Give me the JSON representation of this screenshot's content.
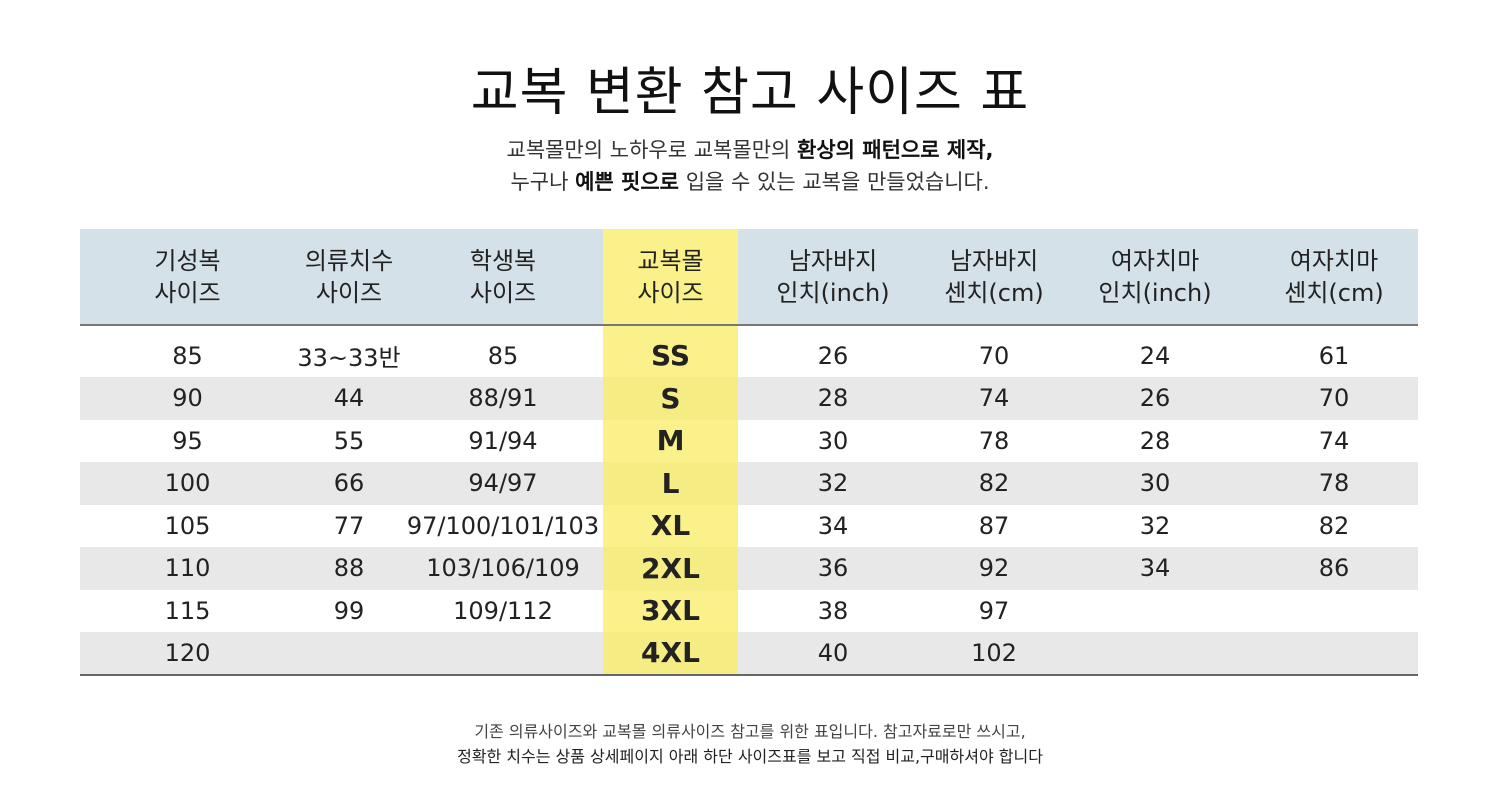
{
  "title": "교복 변환 참고 사이즈 표",
  "subtitle": {
    "line1_plain": "교복몰만의 노하우로 교복몰만의 ",
    "line1_bold": "환상의 패턴으로 제작,",
    "line2_plain_a": "누구나 ",
    "line2_bold": "예쁜 핏으로",
    "line2_plain_b": " 입을 수 있는 교복을 만들었습니다."
  },
  "table": {
    "highlight_color": "#fbf18a",
    "header_bg": "#d4e1e8",
    "columns": [
      {
        "line1": "기성복",
        "line2": "사이즈"
      },
      {
        "line1": "의류치수",
        "line2": "사이즈"
      },
      {
        "line1": "학생복",
        "line2": "사이즈"
      },
      {
        "line1": "교복몰",
        "line2": "사이즈"
      },
      {
        "line1": "남자바지",
        "line2": "인치(inch)"
      },
      {
        "line1": "남자바지",
        "line2": "센치(cm)"
      },
      {
        "line1": "여자치마",
        "line2": "인치(inch)"
      },
      {
        "line1": "여자치마",
        "line2": "센치(cm)"
      }
    ],
    "rows": [
      [
        "85",
        "33~33반",
        "85",
        "SS",
        "26",
        "70",
        "24",
        "61"
      ],
      [
        "90",
        "44",
        "88/91",
        "S",
        "28",
        "74",
        "26",
        "70"
      ],
      [
        "95",
        "55",
        "91/94",
        "M",
        "30",
        "78",
        "28",
        "74"
      ],
      [
        "100",
        "66",
        "94/97",
        "L",
        "32",
        "82",
        "30",
        "78"
      ],
      [
        "105",
        "77",
        "97/100/101/103",
        "XL",
        "34",
        "87",
        "32",
        "82"
      ],
      [
        "110",
        "88",
        "103/106/109",
        "2XL",
        "36",
        "92",
        "34",
        "86"
      ],
      [
        "115",
        "99",
        "109/112",
        "3XL",
        "38",
        "97",
        "",
        ""
      ],
      [
        "120",
        "",
        "",
        "4XL",
        "40",
        "102",
        "",
        ""
      ]
    ]
  },
  "note": {
    "line1": "기존 의류사이즈와 교복몰 의류사이즈 참고를 위한 표입니다. 참고자료로만 쓰시고,",
    "line2": "정확한 치수는 상품 상세페이지 아래 하단 사이즈표를 보고 직접 비교,구매하셔야 합니다"
  }
}
